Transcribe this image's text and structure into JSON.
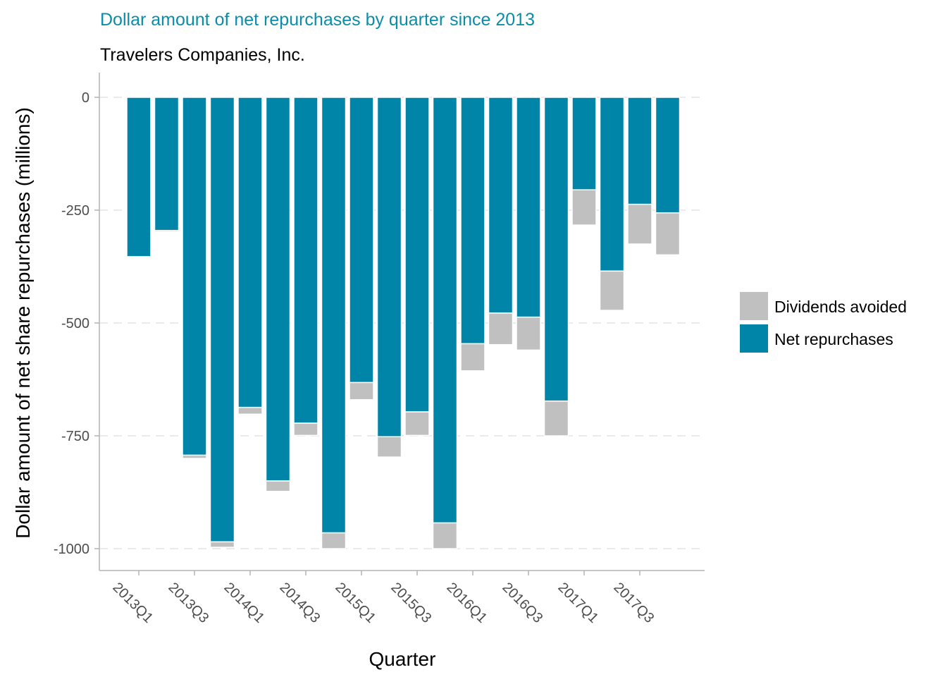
{
  "chart_data": {
    "type": "bar",
    "stacked": true,
    "title": "Dollar amount of net repurchases by quarter since 2013",
    "subtitle": "Travelers Companies, Inc.",
    "xlabel": "Quarter",
    "ylabel": "Dollar amount of net share repurchases (millions)",
    "ylim": [
      -1000,
      0
    ],
    "yticks": [
      0,
      -250,
      -500,
      -750,
      -1000
    ],
    "ytick_labels": [
      "0",
      "-250",
      "-500",
      "-750",
      "-1000"
    ],
    "grid": "horizontal-dashed",
    "legend_position": "right",
    "categories": [
      "2013Q1",
      "2013Q2",
      "2013Q3",
      "2013Q4",
      "2014Q1",
      "2014Q2",
      "2014Q3",
      "2014Q4",
      "2015Q1",
      "2015Q2",
      "2015Q3",
      "2015Q4",
      "2016Q1",
      "2016Q2",
      "2016Q3",
      "2016Q4",
      "2017Q1",
      "2017Q2",
      "2017Q3",
      "2017Q4"
    ],
    "xtick_labels": [
      "2013Q1",
      "2013Q3",
      "2014Q1",
      "2014Q3",
      "2015Q1",
      "2015Q3",
      "2016Q1",
      "2016Q3",
      "2017Q1",
      "2017Q3"
    ],
    "series": [
      {
        "name": "Net repurchases",
        "color": "#0084A8",
        "values": [
          -353,
          -295,
          -793,
          -985,
          -687,
          -850,
          -722,
          -965,
          -632,
          -752,
          -697,
          -943,
          -546,
          -478,
          -487,
          -673,
          -205,
          -385,
          -237,
          -256
        ]
      },
      {
        "name": "Dividends avoided",
        "color": "#C0C0C0",
        "values": [
          0,
          -3,
          -7,
          -12,
          -15,
          -23,
          -27,
          -35,
          -38,
          -45,
          -52,
          -57,
          -60,
          -70,
          -73,
          -77,
          -78,
          -87,
          -88,
          -93
        ]
      }
    ],
    "legend": [
      {
        "name": "Dividends avoided",
        "color": "#C0C0C0"
      },
      {
        "name": "Net repurchases",
        "color": "#0084A8"
      }
    ],
    "title_color": "#0B8DAA"
  }
}
